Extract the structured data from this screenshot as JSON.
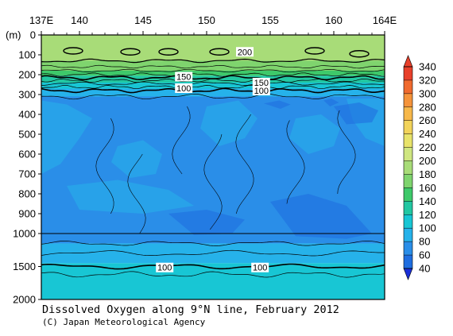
{
  "chart_data": {
    "type": "heatmap",
    "title": "Dissolved Oxygen along 9°N line, February 2012",
    "credit": "(C) Japan Meteorological Agency",
    "x_axis": {
      "range": [
        137,
        164
      ],
      "ticks": [
        {
          "value": 137,
          "label": "137E"
        },
        {
          "value": 140,
          "label": "140"
        },
        {
          "value": 145,
          "label": "145"
        },
        {
          "value": 150,
          "label": "150"
        },
        {
          "value": 155,
          "label": "155"
        },
        {
          "value": 160,
          "label": "160"
        },
        {
          "value": 164,
          "label": "164E"
        }
      ]
    },
    "y_axis": {
      "unit_label": "(m)",
      "upper_range": [
        0,
        1000
      ],
      "lower_range": [
        1000,
        2000
      ],
      "ticks": [
        {
          "value": 0,
          "label": "0"
        },
        {
          "value": 100,
          "label": "100"
        },
        {
          "value": 200,
          "label": "200"
        },
        {
          "value": 300,
          "label": "300"
        },
        {
          "value": 400,
          "label": "400"
        },
        {
          "value": 500,
          "label": "500"
        },
        {
          "value": 600,
          "label": "600"
        },
        {
          "value": 700,
          "label": "700"
        },
        {
          "value": 800,
          "label": "800"
        },
        {
          "value": 900,
          "label": "900"
        },
        {
          "value": 1000,
          "label": "1000"
        },
        {
          "value": 1500,
          "label": "1500"
        },
        {
          "value": 2000,
          "label": "2000"
        }
      ]
    },
    "colorbar": {
      "levels": [
        "340",
        "320",
        "300",
        "280",
        "260",
        "240",
        "220",
        "200",
        "180",
        "160",
        "140",
        "120",
        "100",
        "80",
        "60",
        "40"
      ],
      "colors": [
        "#e8402a",
        "#f06a2e",
        "#f5933a",
        "#f7b84a",
        "#f2d35a",
        "#e8e36a",
        "#cfe680",
        "#a8dc78",
        "#7fd46e",
        "#3ec96a",
        "#22c7a2",
        "#18c6d4",
        "#26b2ea",
        "#2a8ee8",
        "#1f6ee0",
        "#1a4fd6"
      ],
      "min_color": "#1a2fd8",
      "max_color": "#e8402a"
    },
    "contour_labels": [
      {
        "text": "200",
        "x": 153.0,
        "y": 85
      },
      {
        "text": "150",
        "x": 148.2,
        "y": 210
      },
      {
        "text": "100",
        "x": 148.2,
        "y": 268
      },
      {
        "text": "150",
        "x": 154.3,
        "y": 240
      },
      {
        "text": "100",
        "x": 154.3,
        "y": 280
      },
      {
        "text": "100",
        "x": 146.7,
        "y": 1515
      },
      {
        "text": "100",
        "x": 154.2,
        "y": 1515
      }
    ],
    "depth_bands": [
      {
        "top": 0,
        "bottom": 30,
        "level": "200"
      },
      {
        "top": 30,
        "bottom": 130,
        "level": "200"
      },
      {
        "top": 130,
        "bottom": 180,
        "level": "180"
      },
      {
        "top": 180,
        "bottom": 205,
        "level": "160"
      },
      {
        "top": 205,
        "bottom": 240,
        "level": "140"
      },
      {
        "top": 240,
        "bottom": 270,
        "level": "120"
      },
      {
        "top": 270,
        "bottom": 310,
        "level": "100"
      },
      {
        "top": 310,
        "bottom": 900,
        "level": "80"
      },
      {
        "top": 900,
        "bottom": 1000,
        "level": "80"
      },
      {
        "top": 1000,
        "bottom": 1150,
        "level": "80"
      },
      {
        "top": 1150,
        "bottom": 1450,
        "level": "100"
      },
      {
        "top": 1450,
        "bottom": 2000,
        "level": "120"
      }
    ]
  }
}
